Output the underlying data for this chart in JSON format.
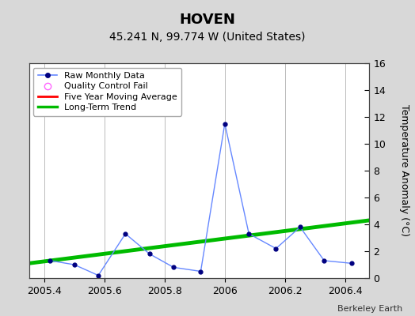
{
  "title": "HOVEN",
  "subtitle": "45.241 N, 99.774 W (United States)",
  "credit": "Berkeley Earth",
  "ylabel_right": "Temperature Anomaly (°C)",
  "xlim": [
    2005.35,
    2006.48
  ],
  "ylim": [
    0,
    16
  ],
  "xticks": [
    2005.4,
    2005.6,
    2005.8,
    2006.0,
    2006.2,
    2006.4
  ],
  "xtick_labels": [
    "2005.4",
    "2005.6",
    "2005.8",
    "2006",
    "2006.2",
    "2006.4"
  ],
  "yticks": [
    0,
    2,
    4,
    6,
    8,
    10,
    12,
    14,
    16
  ],
  "raw_x": [
    2005.42,
    2005.5,
    2005.58,
    2005.67,
    2005.75,
    2005.83,
    2005.92,
    2006.0,
    2006.08,
    2006.17,
    2006.25,
    2006.33,
    2006.42
  ],
  "raw_y": [
    1.3,
    1.0,
    0.2,
    3.3,
    1.8,
    0.8,
    0.5,
    11.5,
    3.3,
    2.2,
    3.8,
    1.3,
    1.1
  ],
  "trend_x": [
    2005.35,
    2006.48
  ],
  "trend_y": [
    1.1,
    4.3
  ],
  "raw_line_color": "#6688ff",
  "raw_marker_color": "#000080",
  "trend_color": "#00bb00",
  "moving_avg_color": "#ff0000",
  "qc_color": "#ff66ff",
  "bg_color": "#d8d8d8",
  "plot_bg_color": "#ffffff",
  "legend_entries": [
    "Raw Monthly Data",
    "Quality Control Fail",
    "Five Year Moving Average",
    "Long-Term Trend"
  ],
  "title_fontsize": 13,
  "subtitle_fontsize": 10,
  "tick_fontsize": 9,
  "ylabel_fontsize": 9,
  "legend_fontsize": 8,
  "credit_fontsize": 8
}
